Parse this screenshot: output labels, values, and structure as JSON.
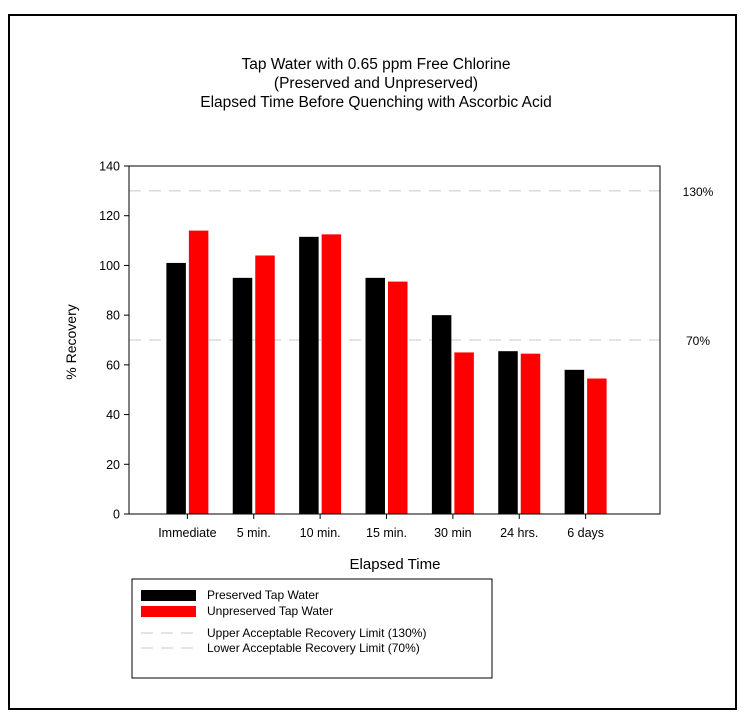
{
  "chart_data": {
    "type": "bar",
    "title": "Tap Water with 0.65 ppm Free Chlorine",
    "subtitle_lines": [
      "(Preserved and Unpreserved)",
      "Elapsed Time Before Quenching with Ascorbic Acid"
    ],
    "xlabel": "Elapsed Time",
    "ylabel": "% Recovery",
    "ylim": [
      0,
      140
    ],
    "yticks": [
      0,
      20,
      40,
      60,
      80,
      100,
      120,
      140
    ],
    "grid": false,
    "categories": [
      "Immediate",
      "5 min.",
      "10 min.",
      "15 min.",
      "30 min",
      "24 hrs.",
      "6 days"
    ],
    "series": [
      {
        "name": "Preserved Tap Water",
        "color": "#000000",
        "values": [
          101,
          95,
          111.5,
          95,
          80,
          65.5,
          58
        ]
      },
      {
        "name": "Unpreserved Tap Water",
        "color": "#ff0000",
        "values": [
          114,
          104,
          112.5,
          93.5,
          65,
          64.5,
          54.5
        ]
      }
    ],
    "reference_lines": [
      {
        "name": "Upper Acceptable Recovery Limit (130%)",
        "value": 130,
        "label": "130%",
        "color": "#c8c8c8",
        "style": "dashed"
      },
      {
        "name": "Lower Acceptable Recovery Limit (70%)",
        "value": 70,
        "label": "70%",
        "color": "#c8c8c8",
        "style": "dashed"
      }
    ],
    "legend_position": "bottom-left"
  }
}
